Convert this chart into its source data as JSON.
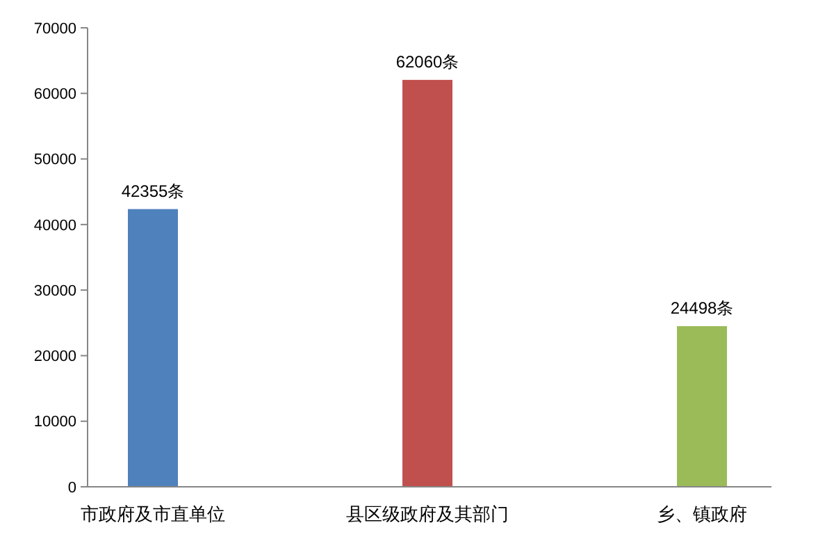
{
  "chart_data": {
    "type": "bar",
    "categories": [
      "市政府及市直单位",
      "县区级政府及其部门",
      "乡、镇政府"
    ],
    "values": [
      42355,
      62060,
      24498
    ],
    "colors": [
      "#4f81bd",
      "#c0504d",
      "#9bbb59"
    ],
    "value_labels": [
      "42355条",
      "62060条",
      "24498条"
    ],
    "ylim": [
      0,
      70000
    ],
    "yticks": [
      0,
      10000,
      20000,
      30000,
      40000,
      50000,
      60000,
      70000
    ],
    "grid": false
  }
}
